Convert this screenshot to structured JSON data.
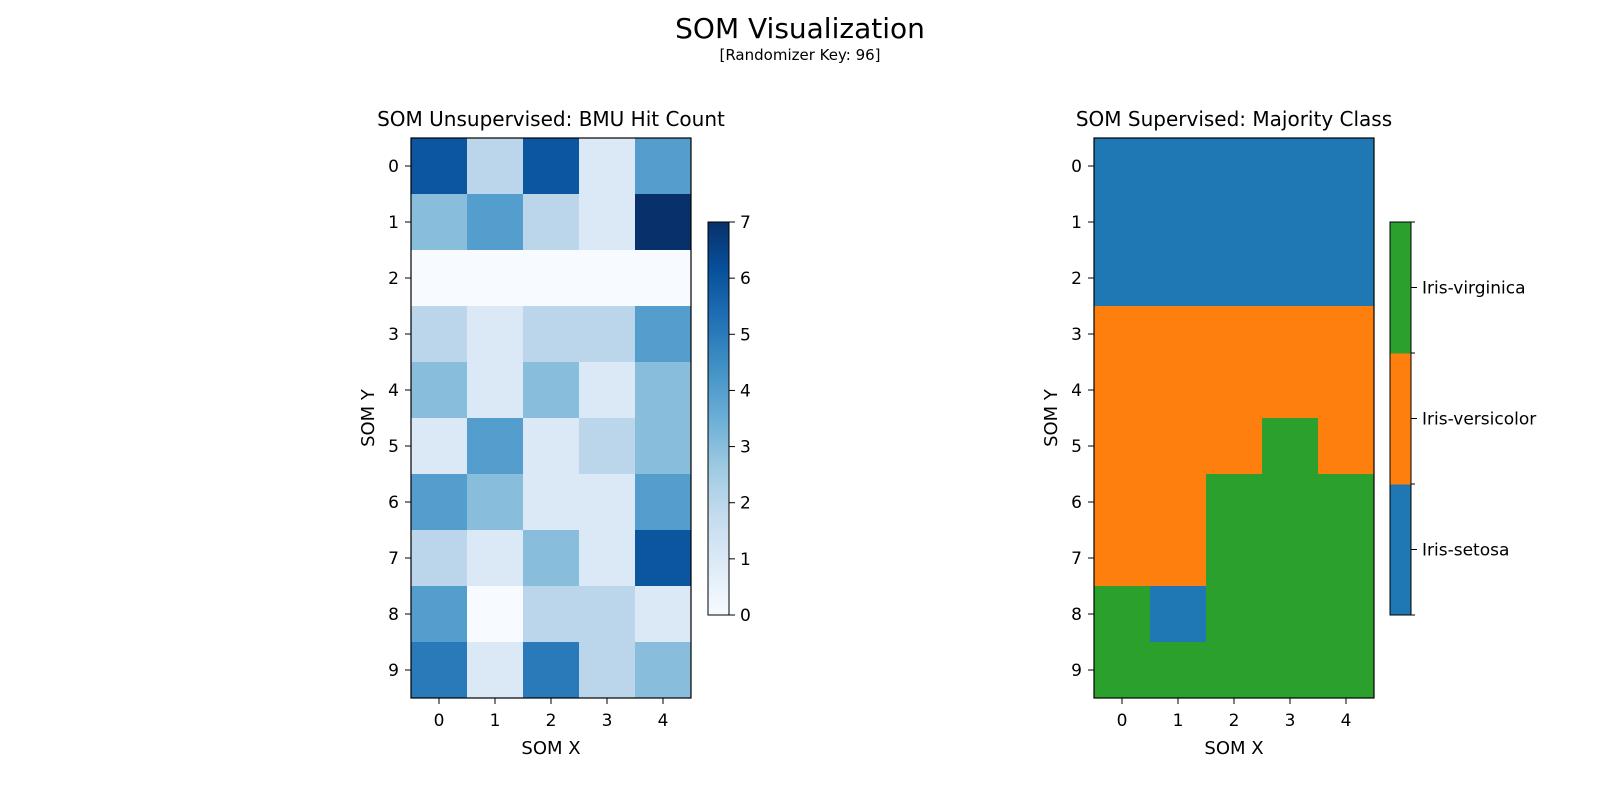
{
  "figure": {
    "title": "SOM Visualization",
    "subtitle": "[Randomizer Key: 96]"
  },
  "chart_data": [
    {
      "type": "heatmap",
      "title": "SOM Unsupervised: BMU Hit Count",
      "xlabel": "SOM X",
      "ylabel": "SOM Y",
      "x": [
        0,
        1,
        2,
        3,
        4
      ],
      "y": [
        0,
        1,
        2,
        3,
        4,
        5,
        6,
        7,
        8,
        9
      ],
      "values": [
        [
          6,
          2,
          6,
          1,
          4
        ],
        [
          3,
          4,
          2,
          1,
          7
        ],
        [
          0,
          0,
          0,
          0,
          0
        ],
        [
          2,
          1,
          2,
          2,
          4
        ],
        [
          3,
          1,
          3,
          1,
          3
        ],
        [
          1,
          4,
          1,
          2,
          3
        ],
        [
          4,
          3,
          1,
          1,
          4
        ],
        [
          2,
          1,
          3,
          1,
          6
        ],
        [
          4,
          0,
          2,
          2,
          1
        ],
        [
          5,
          1,
          5,
          2,
          3
        ]
      ],
      "colormap": "Blues",
      "colorbar": {
        "min": 0,
        "max": 7,
        "ticks": [
          0,
          1,
          2,
          3,
          4,
          5,
          6,
          7
        ]
      },
      "y_axis_inverted": true
    },
    {
      "type": "heatmap",
      "title": "SOM Supervised: Majority Class",
      "xlabel": "SOM X",
      "ylabel": "SOM Y",
      "x": [
        0,
        1,
        2,
        3,
        4
      ],
      "y": [
        0,
        1,
        2,
        3,
        4,
        5,
        6,
        7,
        8,
        9
      ],
      "classes": [
        "Iris-setosa",
        "Iris-versicolor",
        "Iris-virginica"
      ],
      "class_colors": [
        "#1f77b4",
        "#ff7f0e",
        "#2ca02c"
      ],
      "values": [
        [
          0,
          0,
          0,
          0,
          0
        ],
        [
          0,
          0,
          0,
          0,
          0
        ],
        [
          0,
          0,
          0,
          0,
          0
        ],
        [
          1,
          1,
          1,
          1,
          1
        ],
        [
          1,
          1,
          1,
          1,
          1
        ],
        [
          1,
          1,
          1,
          2,
          1
        ],
        [
          1,
          1,
          2,
          2,
          2
        ],
        [
          1,
          1,
          2,
          2,
          2
        ],
        [
          2,
          0,
          2,
          2,
          2
        ],
        [
          2,
          2,
          2,
          2,
          2
        ]
      ],
      "y_axis_inverted": true
    }
  ]
}
